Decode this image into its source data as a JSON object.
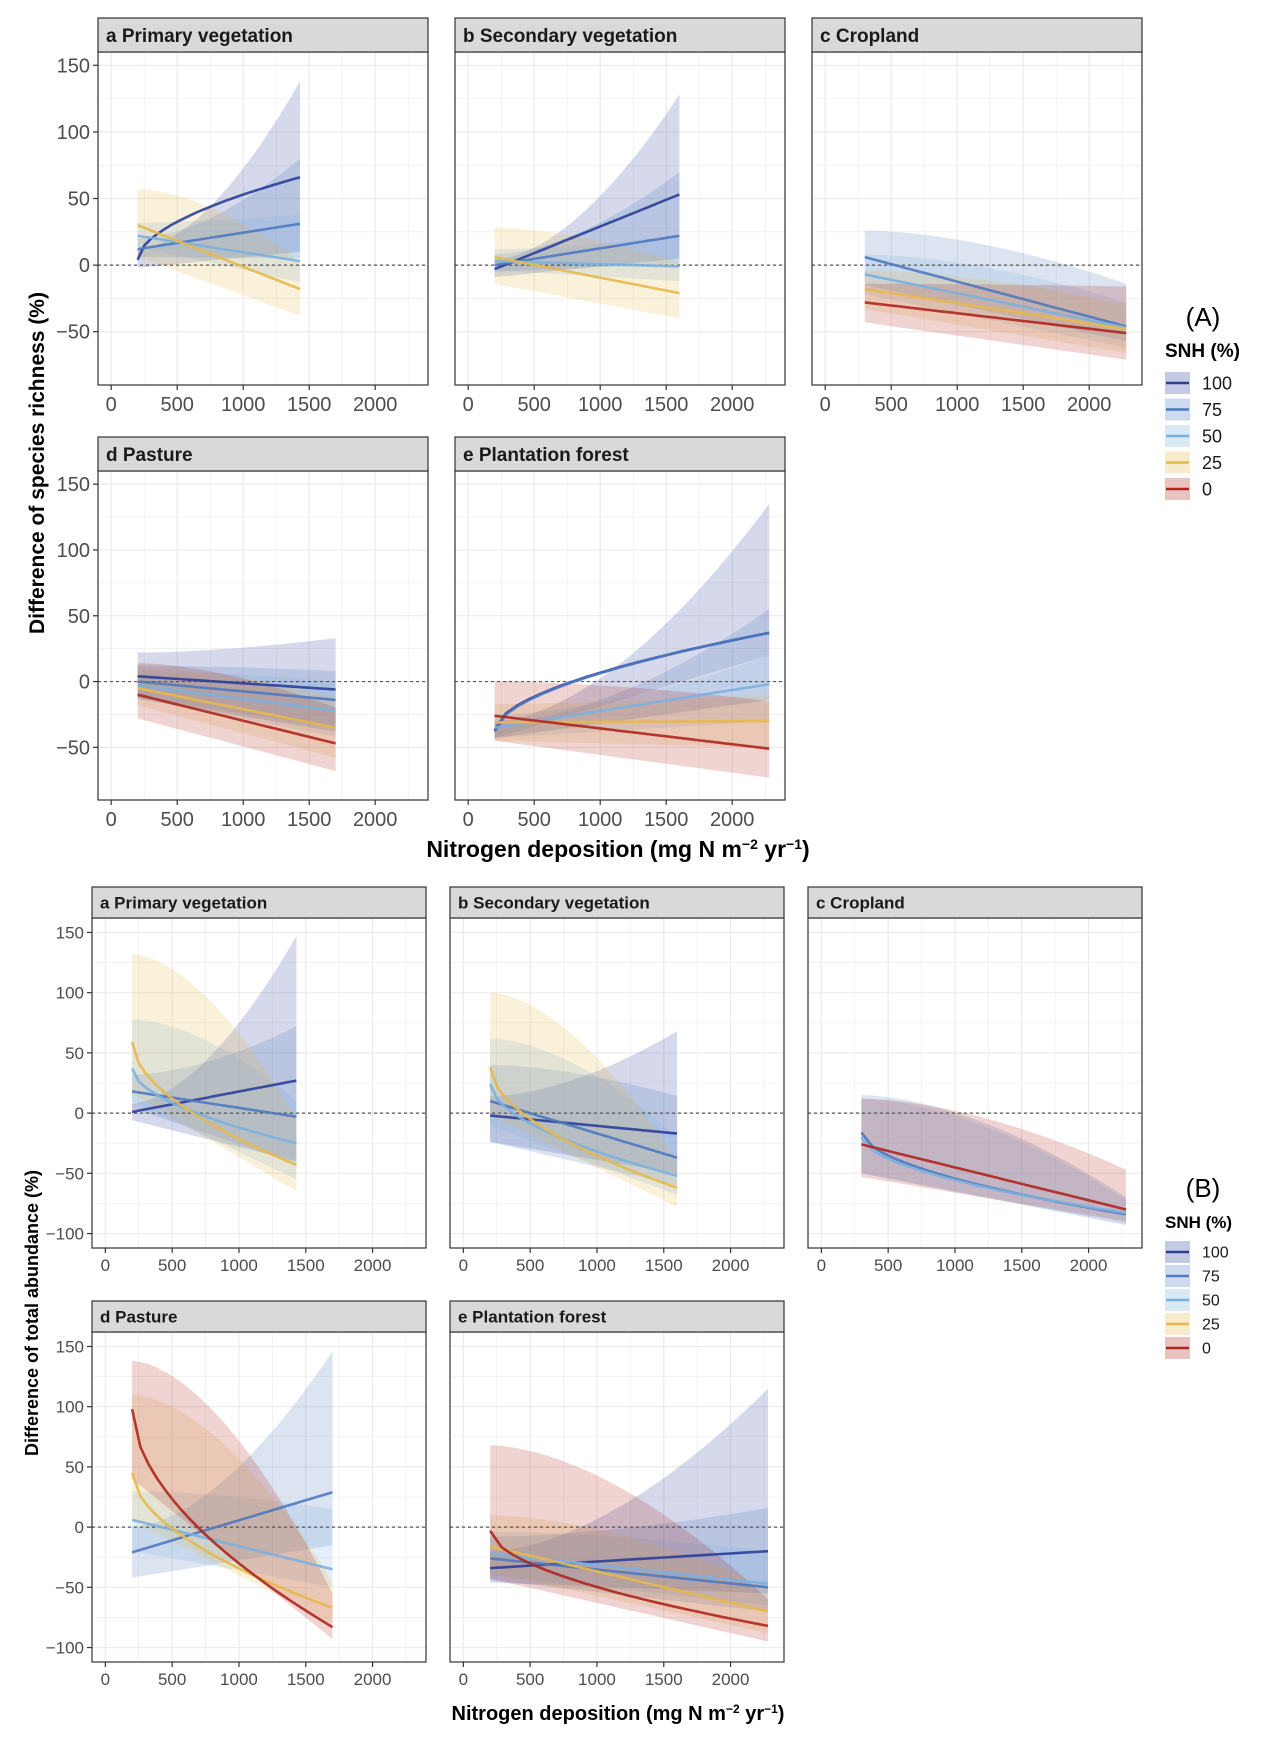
{
  "figure": {
    "x_title_main": "Nitrogen deposition (mg N m",
    "x_title_sup1": "−2",
    "x_title_mid": " yr",
    "x_title_sup2": "−1",
    "x_title_end": ")"
  },
  "colors": {
    "100": "#2b3f99",
    "75": "#4f79c0",
    "50": "#7ab0e0",
    "25": "#e7b84b",
    "0": "#b0261e",
    "strip_bg": "#d9d9d9",
    "grid": "#ebebeb",
    "zero_line": "#555555"
  },
  "legend": {
    "title": "SNH (%)",
    "levels": [
      "100",
      "75",
      "50",
      "25",
      "0"
    ]
  },
  "chart_data": [
    {
      "tag": "(A)",
      "type": "line",
      "ylabel": "Difference of species richness (%)",
      "xlim": [
        -100,
        2400
      ],
      "ylim": [
        -90,
        160
      ],
      "xticks": [
        0,
        500,
        1000,
        1500,
        2000
      ],
      "yticks": [
        -50,
        0,
        50,
        100,
        150
      ],
      "panels": [
        {
          "title": "a Primary vegetation",
          "series": [
            {
              "level": "100",
              "x": [
                200,
                1430
              ],
              "y": [
                4,
                66
              ],
              "lo": [
                -2,
                10
              ],
              "hi": [
                12,
                138
              ]
            },
            {
              "level": "75",
              "x": [
                200,
                1430
              ],
              "y": [
                12,
                31
              ],
              "lo": [
                6,
                5
              ],
              "hi": [
                20,
                80
              ]
            },
            {
              "level": "50",
              "x": [
                200,
                1430
              ],
              "y": [
                22,
                3
              ],
              "lo": [
                14,
                -13
              ],
              "hi": [
                32,
                38
              ]
            },
            {
              "level": "25",
              "x": [
                200,
                1430
              ],
              "y": [
                30,
                -18
              ],
              "lo": [
                6,
                -38
              ],
              "hi": [
                57,
                3
              ]
            }
          ]
        },
        {
          "title": "b Secondary vegetation",
          "series": [
            {
              "level": "100",
              "x": [
                200,
                1600
              ],
              "y": [
                -3,
                53
              ],
              "lo": [
                -9,
                5
              ],
              "hi": [
                4,
                128
              ]
            },
            {
              "level": "75",
              "x": [
                200,
                1600
              ],
              "y": [
                0,
                22
              ],
              "lo": [
                -5,
                1
              ],
              "hi": [
                8,
                70
              ]
            },
            {
              "level": "50",
              "x": [
                200,
                1600
              ],
              "y": [
                3,
                -1
              ],
              "lo": [
                -4,
                -12
              ],
              "hi": [
                12,
                23
              ]
            },
            {
              "level": "25",
              "x": [
                200,
                1600
              ],
              "y": [
                6,
                -21
              ],
              "lo": [
                -14,
                -40
              ],
              "hi": [
                28,
                2
              ]
            }
          ]
        },
        {
          "title": "c Cropland",
          "series": [
            {
              "level": "75",
              "x": [
                300,
                2280
              ],
              "y": [
                6,
                -46
              ],
              "lo": [
                -15,
                -57
              ],
              "hi": [
                26,
                -14
              ]
            },
            {
              "level": "50",
              "x": [
                300,
                2280
              ],
              "y": [
                -7,
                -47
              ],
              "lo": [
                -22,
                -62
              ],
              "hi": [
                8,
                -28
              ]
            },
            {
              "level": "25",
              "x": [
                300,
                2280
              ],
              "y": [
                -18,
                -48
              ],
              "lo": [
                -33,
                -66
              ],
              "hi": [
                -4,
                -30
              ]
            },
            {
              "level": "0",
              "x": [
                300,
                2280
              ],
              "y": [
                -28,
                -51
              ],
              "lo": [
                -43,
                -71
              ],
              "hi": [
                -14,
                -16
              ]
            }
          ]
        },
        {
          "title": "d Pasture",
          "series": [
            {
              "level": "100",
              "x": [
                200,
                1700
              ],
              "y": [
                4,
                -6
              ],
              "lo": [
                -13,
                -38
              ],
              "hi": [
                22,
                33
              ]
            },
            {
              "level": "75",
              "x": [
                200,
                1700
              ],
              "y": [
                0,
                -14
              ],
              "lo": [
                -12,
                -35
              ],
              "hi": [
                12,
                8
              ]
            },
            {
              "level": "50",
              "x": [
                200,
                1700
              ],
              "y": [
                -3,
                -22
              ],
              "lo": [
                -13,
                -42
              ],
              "hi": [
                8,
                0
              ]
            },
            {
              "level": "25",
              "x": [
                200,
                1700
              ],
              "y": [
                -5,
                -35
              ],
              "lo": [
                -18,
                -58
              ],
              "hi": [
                10,
                -12
              ]
            },
            {
              "level": "0",
              "x": [
                200,
                1700
              ],
              "y": [
                -10,
                -47
              ],
              "lo": [
                -28,
                -68
              ],
              "hi": [
                14,
                -20
              ]
            }
          ]
        },
        {
          "title": "e Plantation forest",
          "series": [
            {
              "level": "100",
              "x": [
                200,
                2280
              ],
              "y": [
                -37,
                37
              ],
              "lo": [
                -43,
                -14
              ],
              "hi": [
                -30,
                135
              ]
            },
            {
              "level": "75",
              "x": [
                200,
                2280
              ],
              "y": [
                -38,
                37
              ],
              "lo": [
                -43,
                20
              ],
              "hi": [
                -31,
                55
              ]
            },
            {
              "level": "50",
              "x": [
                200,
                2280
              ],
              "y": [
                -35,
                -2
              ],
              "lo": [
                -43,
                -30
              ],
              "hi": [
                -25,
                20
              ]
            },
            {
              "level": "25",
              "x": [
                200,
                2280
              ],
              "y": [
                -31,
                -30
              ],
              "lo": [
                -45,
                -50
              ],
              "hi": [
                -17,
                -10
              ]
            },
            {
              "level": "0",
              "x": [
                200,
                2280
              ],
              "y": [
                -26,
                -51
              ],
              "lo": [
                -45,
                -73
              ],
              "hi": [
                0,
                -15
              ]
            }
          ]
        }
      ]
    },
    {
      "tag": "(B)",
      "type": "line",
      "ylabel": "Difference of total abundance (%)",
      "xlim": [
        -100,
        2400
      ],
      "ylim": [
        -112,
        162
      ],
      "xticks": [
        0,
        500,
        1000,
        1500,
        2000
      ],
      "yticks": [
        -100,
        -50,
        0,
        50,
        100,
        150
      ],
      "panels": [
        {
          "title": "a Primary vegetation",
          "series": [
            {
              "level": "100",
              "x": [
                200,
                1430
              ],
              "y": [
                1,
                27
              ],
              "lo": [
                -6,
                -40
              ],
              "hi": [
                8,
                147
              ]
            },
            {
              "level": "75",
              "x": [
                200,
                1430
              ],
              "y": [
                18,
                -3
              ],
              "lo": [
                4,
                -42
              ],
              "hi": [
                32,
                72
              ]
            },
            {
              "level": "50",
              "x": [
                200,
                1430
              ],
              "y": [
                37,
                -25
              ],
              "lo": [
                10,
                -55
              ],
              "hi": [
                78,
                10
              ]
            },
            {
              "level": "25",
              "x": [
                200,
                1430
              ],
              "y": [
                59,
                -43
              ],
              "lo": [
                16,
                -65
              ],
              "hi": [
                132,
                -5
              ]
            }
          ]
        },
        {
          "title": "b Secondary vegetation",
          "series": [
            {
              "level": "100",
              "x": [
                200,
                1600
              ],
              "y": [
                -2,
                -17
              ],
              "lo": [
                -24,
                -50
              ],
              "hi": [
                14,
                68
              ]
            },
            {
              "level": "75",
              "x": [
                200,
                1600
              ],
              "y": [
                10,
                -37
              ],
              "lo": [
                -24,
                -60
              ],
              "hi": [
                40,
                14
              ]
            },
            {
              "level": "50",
              "x": [
                200,
                1600
              ],
              "y": [
                24,
                -52
              ],
              "lo": [
                -10,
                -68
              ],
              "hi": [
                62,
                -20
              ]
            },
            {
              "level": "25",
              "x": [
                200,
                1600
              ],
              "y": [
                38,
                -62
              ],
              "lo": [
                -2,
                -78
              ],
              "hi": [
                100,
                -40
              ]
            }
          ]
        },
        {
          "title": "c Cropland",
          "series": [
            {
              "level": "75",
              "x": [
                300,
                2280
              ],
              "y": [
                -16,
                -84
              ],
              "lo": [
                -50,
                -93
              ],
              "hi": [
                15,
                -70
              ]
            },
            {
              "level": "50",
              "x": [
                300,
                2280
              ],
              "y": [
                -20,
                -83
              ],
              "lo": [
                -50,
                -92
              ],
              "hi": [
                12,
                -72
              ]
            },
            {
              "level": "0",
              "x": [
                300,
                2280
              ],
              "y": [
                -26,
                -80
              ],
              "lo": [
                -53,
                -90
              ],
              "hi": [
                12,
                -47
              ]
            }
          ]
        },
        {
          "title": "d Pasture",
          "series": [
            {
              "level": "75",
              "x": [
                200,
                1700
              ],
              "y": [
                -21,
                29
              ],
              "lo": [
                -42,
                -15
              ],
              "hi": [
                0,
                146
              ]
            },
            {
              "level": "50",
              "x": [
                200,
                1700
              ],
              "y": [
                6,
                -35
              ],
              "lo": [
                -20,
                -50
              ],
              "hi": [
                30,
                15
              ]
            },
            {
              "level": "25",
              "x": [
                200,
                1700
              ],
              "y": [
                45,
                -67
              ],
              "lo": [
                5,
                -80
              ],
              "hi": [
                110,
                -45
              ]
            },
            {
              "level": "0",
              "x": [
                200,
                1700
              ],
              "y": [
                98,
                -83
              ],
              "lo": [
                40,
                -93
              ],
              "hi": [
                138,
                -55
              ]
            }
          ]
        },
        {
          "title": "e Plantation forest",
          "series": [
            {
              "level": "100",
              "x": [
                200,
                2280
              ],
              "y": [
                -34,
                -20
              ],
              "lo": [
                -46,
                -55
              ],
              "hi": [
                -20,
                115
              ]
            },
            {
              "level": "75",
              "x": [
                200,
                2280
              ],
              "y": [
                -26,
                -50
              ],
              "lo": [
                -44,
                -70
              ],
              "hi": [
                -8,
                16
              ]
            },
            {
              "level": "50",
              "x": [
                200,
                2280
              ],
              "y": [
                -22,
                -47
              ],
              "lo": [
                -40,
                -65
              ],
              "hi": [
                -4,
                -20
              ]
            },
            {
              "level": "25",
              "x": [
                200,
                2280
              ],
              "y": [
                -16,
                -70
              ],
              "lo": [
                -38,
                -88
              ],
              "hi": [
                10,
                -50
              ]
            },
            {
              "level": "0",
              "x": [
                200,
                2280
              ],
              "y": [
                -3,
                -82
              ],
              "lo": [
                -43,
                -95
              ],
              "hi": [
                68,
                -60
              ]
            }
          ]
        }
      ]
    }
  ]
}
